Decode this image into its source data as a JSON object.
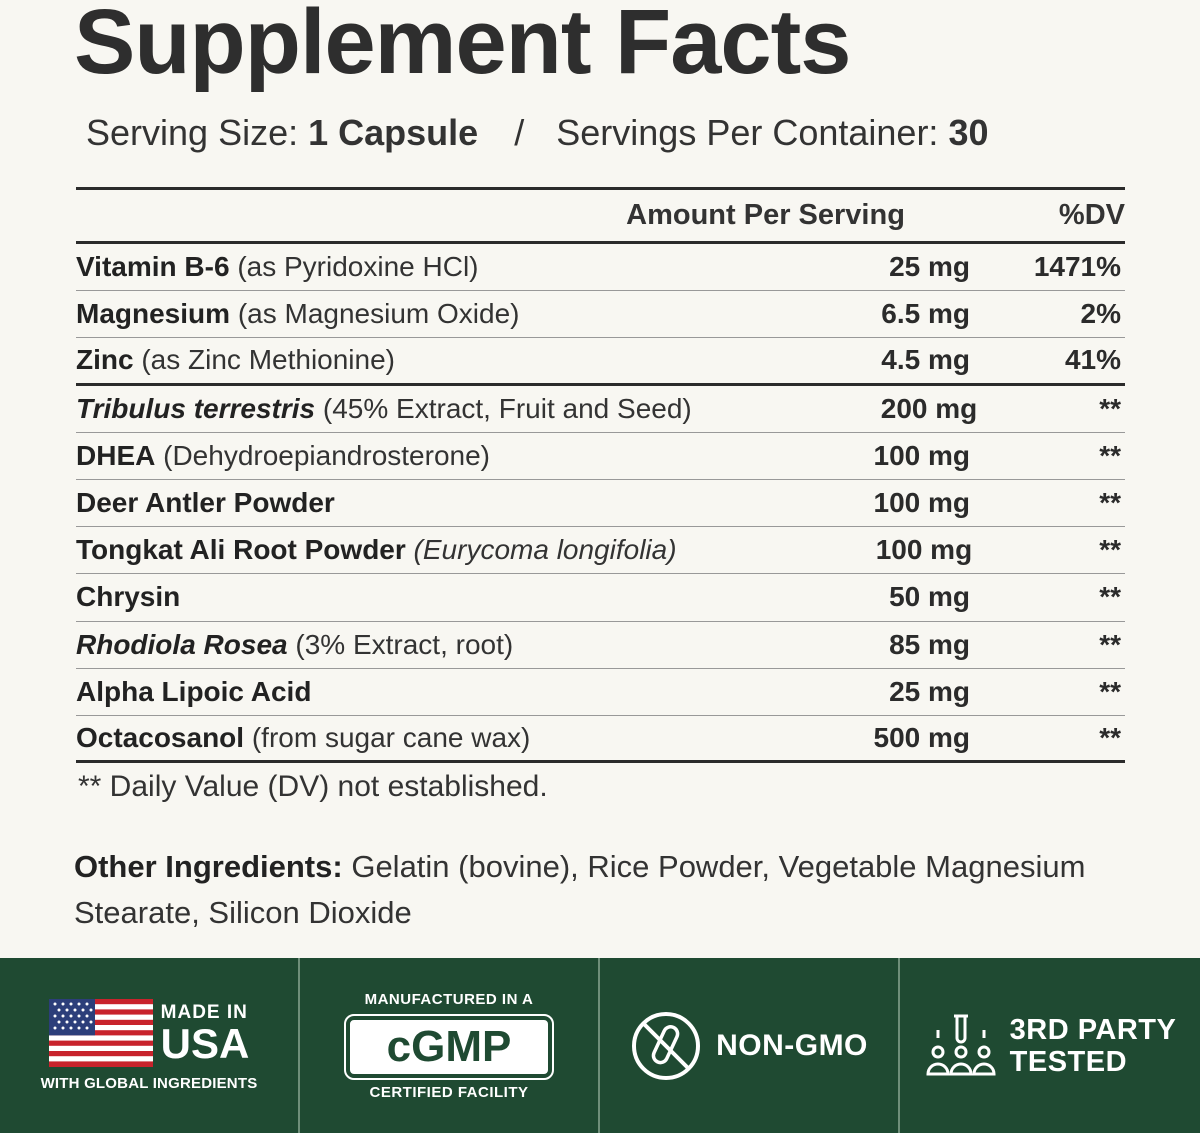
{
  "title": "Supplement Facts",
  "serving": {
    "size_label": "Serving Size:",
    "size_value": "1 Capsule",
    "separator": "/",
    "per_container_label": "Servings Per Container:",
    "per_container_value": "30"
  },
  "table": {
    "header_amount": "Amount Per Serving",
    "header_dv": "%DV",
    "rows": [
      {
        "name": "Vitamin B-6",
        "detail": "(as Pyridoxine HCl)",
        "amount": "25 mg",
        "dv": "1471%"
      },
      {
        "name": "Magnesium",
        "detail": "(as Magnesium Oxide)",
        "amount": "6.5 mg",
        "dv": "2%"
      },
      {
        "name": "Zinc",
        "detail": "(as Zinc Methionine)",
        "amount": "4.5 mg",
        "dv": "41%"
      },
      {
        "name": "Tribulus terrestris",
        "detail": "(45% Extract, Fruit and Seed)",
        "amount": "200 mg",
        "dv": "**"
      },
      {
        "name": "DHEA",
        "detail": "(Dehydroepiandrosterone)",
        "amount": "100 mg",
        "dv": "**"
      },
      {
        "name": "Deer Antler Powder",
        "detail": "",
        "amount": "100 mg",
        "dv": "**"
      },
      {
        "name": "Tongkat Ali Root Powder",
        "detail": "(Eurycoma longifolia)",
        "amount": "100 mg",
        "dv": "**"
      },
      {
        "name": "Chrysin",
        "detail": "",
        "amount": "50 mg",
        "dv": "**"
      },
      {
        "name": "Rhodiola Rosea",
        "detail": "(3% Extract, root)",
        "amount": "85 mg",
        "dv": "**"
      },
      {
        "name": "Alpha Lipoic Acid",
        "detail": "",
        "amount": "25 mg",
        "dv": "**"
      },
      {
        "name": "Octacosanol",
        "detail": "(from sugar cane wax)",
        "amount": "500 mg",
        "dv": "**"
      }
    ]
  },
  "footnote": "** Daily Value (DV) not established.",
  "other_ingredients": {
    "label": "Other Ingredients:",
    "text": "Gelatin (bovine), Rice Powder, Vegetable Magnesium Stearate, Silicon Dioxide"
  },
  "badges": {
    "usa_line1": "MADE IN",
    "usa_line2": "USA",
    "usa_line3": "WITH GLOBAL INGREDIENTS",
    "cgmp_top": "MANUFACTURED IN A",
    "cgmp_main": "cGMP",
    "cgmp_bottom": "CERTIFIED FACILITY",
    "gmo": "NON-GMO",
    "third_line1": "3RD PARTY",
    "third_line2": "TESTED"
  },
  "colors": {
    "background": "#f8f7f2",
    "banner": "#1f4a32",
    "text": "#2b2b2b"
  }
}
